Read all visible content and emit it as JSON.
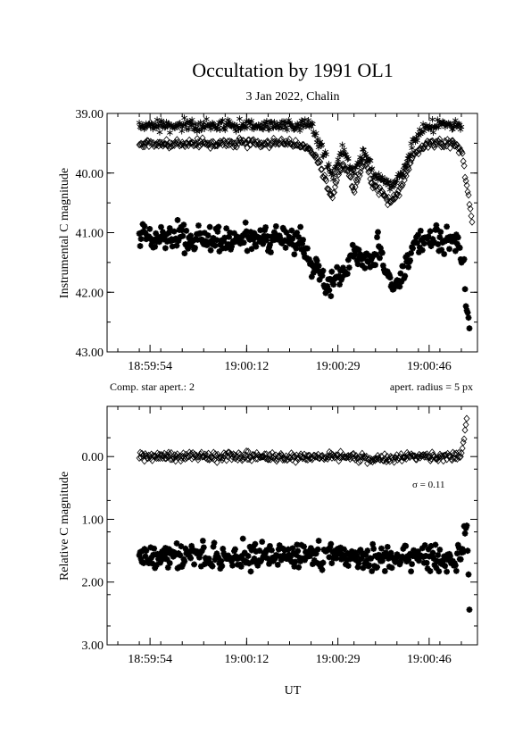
{
  "figure": {
    "title": "Occultation by 1991 OL1",
    "subtitle": "3 Jan 2022, Chalin",
    "xlabel": "UT",
    "left_note": "Comp. star apert.: 2",
    "right_note": "apert. radius = 5 px",
    "sigma_label": "σ = 0.11"
  },
  "chart_data": [
    {
      "type": "scatter",
      "title": "Occultation by 1991 OL1",
      "ylabel": "Instrumental C magnitude",
      "xlabel": "",
      "x_tick_labels": [
        "18:59:54",
        "19:00:12",
        "19:00:29",
        "19:00:46"
      ],
      "x_ticks_seconds_after_185900": [
        54,
        72,
        89,
        106
      ],
      "xlim_seconds_after_185900": [
        46,
        115
      ],
      "y_ticks": [
        39.0,
        40.0,
        41.0,
        42.0,
        43.0
      ],
      "y_tick_labels": [
        "39.00",
        "40.00",
        "41.00",
        "42.00",
        "43.00"
      ],
      "ylim": [
        43.0,
        39.0
      ],
      "y_inverted": true,
      "x_unit": "UT (hh:mm:ss, seconds after 18:59:00)",
      "series": [
        {
          "marker": "asterisk",
          "x": [
            52,
            56,
            60,
            64,
            68,
            72,
            76,
            80,
            84,
            85.5,
            87,
            88,
            89,
            90,
            91,
            92,
            94,
            95.5,
            97,
            99,
            101,
            103,
            104.5,
            106,
            108,
            110,
            111.5,
            112
          ],
          "y": [
            39.2,
            39.2,
            39.2,
            39.2,
            39.2,
            39.2,
            39.2,
            39.2,
            39.2,
            39.5,
            39.8,
            40.1,
            39.8,
            39.6,
            39.8,
            40.0,
            39.6,
            40.0,
            40.1,
            40.2,
            40.0,
            39.5,
            39.3,
            39.2,
            39.2,
            39.2,
            39.2,
            39.3
          ]
        },
        {
          "marker": "diamond",
          "x": [
            52,
            56,
            60,
            64,
            68,
            72,
            76,
            80,
            84,
            85.5,
            87,
            88,
            89,
            90,
            91,
            92,
            94,
            95.5,
            97,
            99,
            101,
            103,
            104.5,
            106,
            108,
            110,
            112,
            113,
            114
          ],
          "y": [
            39.5,
            39.5,
            39.5,
            39.5,
            39.5,
            39.5,
            39.5,
            39.5,
            39.6,
            39.8,
            40.2,
            40.4,
            40.0,
            39.9,
            40.0,
            40.3,
            39.8,
            40.2,
            40.3,
            40.5,
            40.2,
            39.7,
            39.6,
            39.5,
            39.5,
            39.5,
            39.6,
            40.2,
            40.8
          ]
        },
        {
          "marker": "filled-star",
          "x": [
            52,
            55,
            58,
            61,
            64,
            67,
            70,
            73,
            76,
            79,
            82,
            84,
            86,
            87.5,
            89,
            90.5,
            92,
            93.5,
            95,
            96.5,
            98,
            99.5,
            101,
            103,
            106,
            109,
            111,
            112.5,
            113,
            113.5
          ],
          "y": [
            41.1,
            41.1,
            41.1,
            41.1,
            41.1,
            41.1,
            41.1,
            41.1,
            41.1,
            41.1,
            41.15,
            41.5,
            41.8,
            41.9,
            41.6,
            41.7,
            41.3,
            41.5,
            41.6,
            41.2,
            41.6,
            41.9,
            41.7,
            41.2,
            41.1,
            41.1,
            41.1,
            41.6,
            42.2,
            42.5
          ]
        }
      ]
    },
    {
      "type": "scatter",
      "ylabel": "Relative C magnitude",
      "xlabel": "UT",
      "x_tick_labels": [
        "18:59:54",
        "19:00:12",
        "19:00:29",
        "19:00:46"
      ],
      "x_ticks_seconds_after_185900": [
        54,
        72,
        89,
        106
      ],
      "xlim_seconds_after_185900": [
        46,
        115
      ],
      "y_ticks": [
        0.0,
        1.0,
        2.0,
        3.0
      ],
      "y_tick_labels": [
        "0.00",
        "1.00",
        "2.00",
        "3.00"
      ],
      "ylim": [
        3.0,
        -0.8
      ],
      "y_inverted": true,
      "annotation": "σ = 0.11",
      "series": [
        {
          "marker": "diamond",
          "x": [
            52,
            60,
            68,
            76,
            84,
            90,
            96,
            102,
            108,
            112,
            113
          ],
          "y": [
            0.0,
            0.0,
            0.0,
            0.0,
            0.0,
            0.0,
            0.05,
            0.0,
            0.0,
            0.0,
            -0.6
          ]
        },
        {
          "marker": "filled-star",
          "x": [
            52,
            58,
            64,
            70,
            76,
            82,
            88,
            94,
            100,
            106,
            112,
            113,
            113.5
          ],
          "y": [
            1.6,
            1.6,
            1.6,
            1.6,
            1.6,
            1.6,
            1.55,
            1.65,
            1.6,
            1.6,
            1.6,
            1.0,
            2.4
          ]
        }
      ]
    }
  ]
}
